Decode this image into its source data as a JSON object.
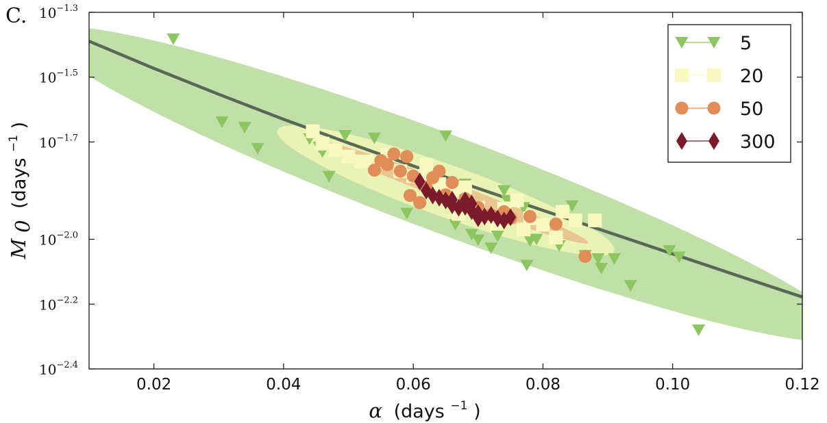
{
  "panel_label": "C.",
  "chart_data": {
    "type": "scatter",
    "xlabel": {
      "main": "α",
      "unit": "(days",
      "exp": "−1",
      "close": ")"
    },
    "ylabel": {
      "main": "M",
      "sub": "0",
      "unit": "(days",
      "exp": "−1",
      "close": ")"
    },
    "xlim": [
      0.01,
      0.12
    ],
    "ylim_log10": [
      -2.4,
      -1.3
    ],
    "y_scale": "log",
    "grid": false,
    "legend_position": "top-right",
    "x_ticks": [
      "0.02",
      "0.04",
      "0.06",
      "0.08",
      "0.10",
      "0.12"
    ],
    "x_tick_values": [
      0.02,
      0.04,
      0.06,
      0.08,
      0.1,
      0.12
    ],
    "y_ticks": [
      {
        "base": "10",
        "exp": "−1.3",
        "value": -1.3
      },
      {
        "base": "10",
        "exp": "−1.5",
        "value": -1.5
      },
      {
        "base": "10",
        "exp": "−1.7",
        "value": -1.7
      },
      {
        "base": "10",
        "exp": "−2.0",
        "value": -2.0
      },
      {
        "base": "10",
        "exp": "−2.2",
        "value": -2.2
      },
      {
        "base": "10",
        "exp": "−2.4",
        "value": -2.4
      }
    ],
    "fit_curve": {
      "color": "#4d5a4d",
      "x": [
        0.01,
        0.02,
        0.03,
        0.04,
        0.05,
        0.06,
        0.07,
        0.08,
        0.09,
        0.1,
        0.11,
        0.12
      ],
      "log10_y": [
        -1.389,
        -1.473,
        -1.553,
        -1.63,
        -1.703,
        -1.774,
        -1.843,
        -1.911,
        -1.978,
        -2.045,
        -2.112,
        -2.178
      ]
    },
    "ellipses": [
      {
        "series": "5",
        "color": "#8dc661",
        "opacity": 0.55,
        "center_x": 0.065,
        "center_log10_y": -1.83,
        "semi_major_x": 0.062,
        "slope": -7.4,
        "width_log10": 0.16
      },
      {
        "series": "20",
        "color": "#f7f9b7",
        "opacity": 0.75,
        "center_x": 0.065,
        "center_log10_y": -1.85,
        "semi_major_x": 0.026,
        "slope": -7.0,
        "width_log10": 0.085
      },
      {
        "series": "50",
        "color": "#e8b080",
        "opacity": 0.7,
        "center_x": 0.066,
        "center_log10_y": -1.855,
        "semi_major_x": 0.021,
        "slope": -7.4,
        "width_log10": 0.03
      }
    ],
    "series": [
      {
        "name": "5",
        "marker": "triangle-down",
        "color": "#8dc661",
        "points": [
          [
            0.023,
            -1.382
          ],
          [
            0.0305,
            -1.638
          ],
          [
            0.034,
            -1.655
          ],
          [
            0.036,
            -1.72
          ],
          [
            0.0455,
            -1.716
          ],
          [
            0.044,
            -1.69
          ],
          [
            0.046,
            -1.73
          ],
          [
            0.047,
            -1.806
          ],
          [
            0.0495,
            -1.68
          ],
          [
            0.054,
            -1.688
          ],
          [
            0.065,
            -1.681
          ],
          [
            0.063,
            -1.8
          ],
          [
            0.068,
            -1.83
          ],
          [
            0.059,
            -1.92
          ],
          [
            0.0665,
            -1.955
          ],
          [
            0.069,
            -1.985
          ],
          [
            0.07,
            -2.002
          ],
          [
            0.072,
            -2.027
          ],
          [
            0.073,
            -1.99
          ],
          [
            0.0745,
            -1.88
          ],
          [
            0.077,
            -1.902
          ],
          [
            0.079,
            -2.0
          ],
          [
            0.078,
            -2.005
          ],
          [
            0.0825,
            -2.02
          ],
          [
            0.0845,
            -1.897
          ],
          [
            0.0775,
            -2.08
          ],
          [
            0.0865,
            -2.05
          ],
          [
            0.0885,
            -2.06
          ],
          [
            0.089,
            -2.09
          ],
          [
            0.091,
            -2.06
          ],
          [
            0.0935,
            -2.143
          ],
          [
            0.0995,
            -2.035
          ],
          [
            0.101,
            -2.055
          ],
          [
            0.104,
            -2.28
          ],
          [
            0.074,
            -1.85
          ],
          [
            0.068,
            -1.88
          ]
        ]
      },
      {
        "name": "20",
        "marker": "square",
        "color": "#f8f9c0",
        "points": [
          [
            0.0445,
            -1.667
          ],
          [
            0.046,
            -1.705
          ],
          [
            0.048,
            -1.726
          ],
          [
            0.05,
            -1.745
          ],
          [
            0.052,
            -1.76
          ],
          [
            0.054,
            -1.76
          ],
          [
            0.056,
            -1.74
          ],
          [
            0.058,
            -1.79
          ],
          [
            0.06,
            -1.805
          ],
          [
            0.062,
            -1.812
          ],
          [
            0.064,
            -1.83
          ],
          [
            0.066,
            -1.855
          ],
          [
            0.068,
            -1.84
          ],
          [
            0.067,
            -1.922
          ],
          [
            0.07,
            -1.903
          ],
          [
            0.072,
            -1.935
          ],
          [
            0.074,
            -1.905
          ],
          [
            0.076,
            -1.88
          ],
          [
            0.078,
            -1.935
          ],
          [
            0.08,
            -1.955
          ],
          [
            0.083,
            -1.915
          ],
          [
            0.085,
            -1.942
          ],
          [
            0.088,
            -1.942
          ],
          [
            0.073,
            -1.952
          ],
          [
            0.066,
            -1.87
          ],
          [
            0.077,
            -1.97
          ],
          [
            0.082,
            -1.995
          ],
          [
            0.062,
            -1.77
          ]
        ]
      },
      {
        "name": "50",
        "marker": "circle",
        "color": "#e08d57",
        "points": [
          [
            0.055,
            -1.757
          ],
          [
            0.057,
            -1.737
          ],
          [
            0.059,
            -1.745
          ],
          [
            0.054,
            -1.787
          ],
          [
            0.056,
            -1.77
          ],
          [
            0.058,
            -1.79
          ],
          [
            0.06,
            -1.805
          ],
          [
            0.062,
            -1.84
          ],
          [
            0.064,
            -1.79
          ],
          [
            0.063,
            -1.81
          ],
          [
            0.066,
            -1.825
          ],
          [
            0.065,
            -1.863
          ],
          [
            0.068,
            -1.875
          ],
          [
            0.07,
            -1.902
          ],
          [
            0.074,
            -1.915
          ],
          [
            0.078,
            -1.93
          ],
          [
            0.082,
            -1.953
          ],
          [
            0.0865,
            -2.053
          ],
          [
            0.0595,
            -1.865
          ],
          [
            0.061,
            -1.887
          ],
          [
            0.075,
            -1.935
          ],
          [
            0.072,
            -1.925
          ]
        ]
      },
      {
        "name": "300",
        "marker": "diamond",
        "color": "#7b1a2b",
        "points": [
          [
            0.061,
            -1.822
          ],
          [
            0.062,
            -1.85
          ],
          [
            0.063,
            -1.865
          ],
          [
            0.064,
            -1.872
          ],
          [
            0.065,
            -1.88
          ],
          [
            0.066,
            -1.895
          ],
          [
            0.067,
            -1.903
          ],
          [
            0.068,
            -1.9
          ],
          [
            0.069,
            -1.913
          ],
          [
            0.07,
            -1.92
          ],
          [
            0.071,
            -1.93
          ],
          [
            0.072,
            -1.925
          ],
          [
            0.073,
            -1.936
          ],
          [
            0.074,
            -1.942
          ],
          [
            0.075,
            -1.932
          ],
          [
            0.069,
            -1.89
          ],
          [
            0.07,
            -1.935
          ],
          [
            0.068,
            -1.88
          ],
          [
            0.066,
            -1.878
          ]
        ]
      }
    ]
  }
}
